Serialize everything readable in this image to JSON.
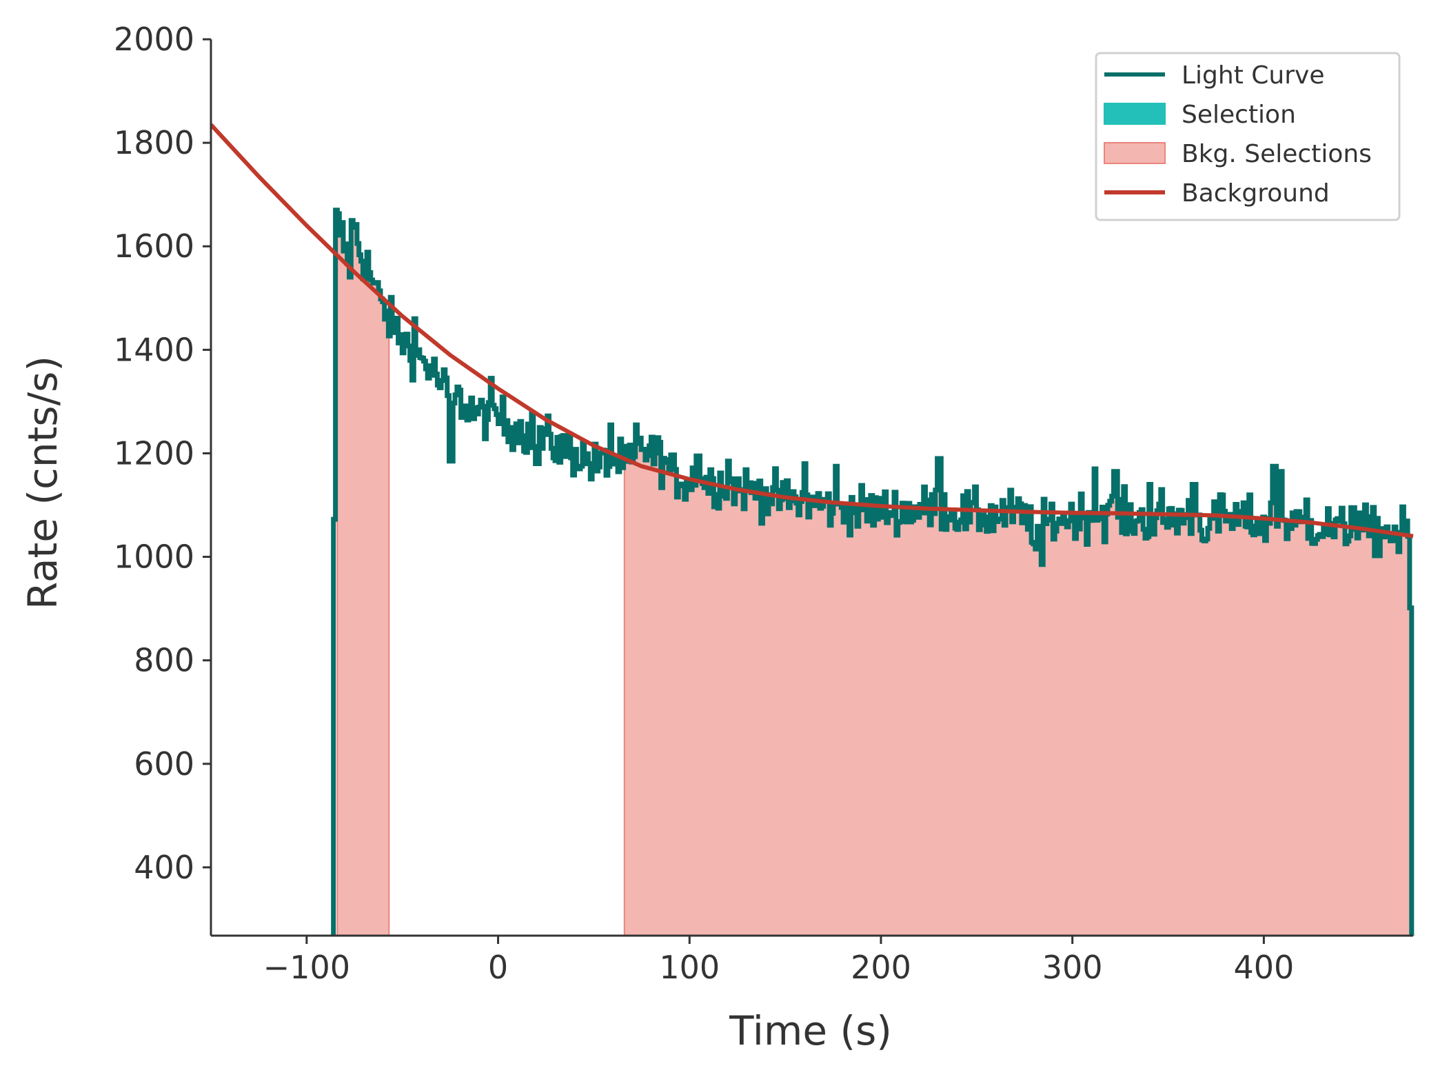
{
  "chart_data": {
    "type": "line",
    "xlabel": "Time (s)",
    "ylabel": "Rate (cnts/s)",
    "xlim": [
      -150,
      478
    ],
    "ylim": [
      268,
      2000
    ],
    "x_ticks": [
      -100,
      0,
      100,
      200,
      300,
      400
    ],
    "x_tick_labels": [
      "−100",
      "0",
      "100",
      "200",
      "300",
      "400"
    ],
    "y_ticks": [
      400,
      600,
      800,
      1000,
      1200,
      1400,
      1600,
      1800,
      2000
    ],
    "y_tick_labels": [
      "400",
      "600",
      "800",
      "1000",
      "1200",
      "1400",
      "1600",
      "1800",
      "2000"
    ],
    "grid": false,
    "legend_position": "top-right",
    "legend": [
      {
        "label": "Light Curve",
        "kind": "line",
        "color": "#076F69"
      },
      {
        "label": "Selection",
        "kind": "patch",
        "color": "#22C0B8"
      },
      {
        "label": "Bkg. Selections",
        "kind": "patch",
        "color": "#F4B6B1"
      },
      {
        "label": "Background",
        "kind": "line",
        "color": "#C0392B"
      }
    ],
    "light_curve": {
      "name": "Light Curve",
      "color": "#076F69",
      "start": -86,
      "end": 478,
      "anchors": [
        [
          -87,
          268
        ],
        [
          -86,
          1050
        ],
        [
          -85,
          1650
        ],
        [
          -82,
          1620
        ],
        [
          -78,
          1560
        ],
        [
          -75,
          1640
        ],
        [
          -72,
          1580
        ],
        [
          -68,
          1560
        ],
        [
          -64,
          1500
        ],
        [
          -60,
          1480
        ],
        [
          -55,
          1440
        ],
        [
          -50,
          1420
        ],
        [
          -45,
          1400
        ],
        [
          -40,
          1380
        ],
        [
          -35,
          1360
        ],
        [
          -30,
          1330
        ],
        [
          -25,
          1310
        ],
        [
          -20,
          1300
        ],
        [
          -15,
          1290
        ],
        [
          -10,
          1270
        ],
        [
          -5,
          1280
        ],
        [
          0,
          1270
        ],
        [
          5,
          1255
        ],
        [
          10,
          1250
        ],
        [
          15,
          1240
        ],
        [
          20,
          1235
        ],
        [
          25,
          1225
        ],
        [
          30,
          1215
        ],
        [
          35,
          1205
        ],
        [
          40,
          1200
        ],
        [
          45,
          1190
        ],
        [
          50,
          1175
        ],
        [
          55,
          1180
        ],
        [
          60,
          1185
        ],
        [
          65,
          1180
        ],
        [
          70,
          1175
        ],
        [
          75,
          1215
        ],
        [
          80,
          1200
        ],
        [
          85,
          1190
        ],
        [
          90,
          1160
        ],
        [
          95,
          1150
        ],
        [
          100,
          1150
        ],
        [
          110,
          1145
        ],
        [
          120,
          1140
        ],
        [
          130,
          1130
        ],
        [
          140,
          1120
        ],
        [
          150,
          1110
        ],
        [
          160,
          1105
        ],
        [
          170,
          1100
        ],
        [
          180,
          1095
        ],
        [
          190,
          1090
        ],
        [
          200,
          1090
        ],
        [
          210,
          1090
        ],
        [
          220,
          1090
        ],
        [
          230,
          1095
        ],
        [
          240,
          1085
        ],
        [
          250,
          1080
        ],
        [
          260,
          1080
        ],
        [
          270,
          1085
        ],
        [
          280,
          1060
        ],
        [
          290,
          1070
        ],
        [
          300,
          1080
        ],
        [
          310,
          1080
        ],
        [
          320,
          1085
        ],
        [
          330,
          1075
        ],
        [
          340,
          1070
        ],
        [
          350,
          1075
        ],
        [
          360,
          1080
        ],
        [
          370,
          1060
        ],
        [
          380,
          1075
        ],
        [
          390,
          1070
        ],
        [
          400,
          1065
        ],
        [
          410,
          1070
        ],
        [
          420,
          1060
        ],
        [
          430,
          1060
        ],
        [
          440,
          1050
        ],
        [
          450,
          1055
        ],
        [
          460,
          1045
        ],
        [
          470,
          1050
        ],
        [
          476,
          1045
        ],
        [
          477,
          268
        ]
      ],
      "spikes": [
        [
          -85,
          1670
        ],
        [
          -77,
          1650
        ],
        [
          -64,
          1530
        ],
        [
          -44,
          1460
        ],
        [
          -25,
          1185
        ],
        [
          -4,
          1345
        ],
        [
          20,
          1180
        ],
        [
          58,
          1255
        ],
        [
          72,
          1255
        ],
        [
          104,
          1195
        ],
        [
          120,
          1185
        ],
        [
          160,
          1180
        ],
        [
          176,
          1175
        ],
        [
          230,
          1190
        ],
        [
          281,
          1015
        ],
        [
          284,
          985
        ],
        [
          311,
          1170
        ],
        [
          322,
          1165
        ],
        [
          340,
          1140
        ],
        [
          346,
          1130
        ],
        [
          363,
          1140
        ],
        [
          377,
          1120
        ],
        [
          405,
          1175
        ],
        [
          408,
          1165
        ],
        [
          422,
          1110
        ],
        [
          446,
          1095
        ],
        [
          470,
          1010
        ]
      ]
    },
    "background_fit": {
      "name": "Background",
      "color": "#C0392B",
      "x": [
        -150,
        -125,
        -100,
        -75,
        -50,
        -25,
        0,
        25,
        50,
        75,
        100,
        125,
        150,
        175,
        200,
        225,
        250,
        275,
        300,
        325,
        350,
        375,
        400,
        425,
        450,
        478
      ],
      "y": [
        1835,
        1735,
        1640,
        1550,
        1465,
        1390,
        1325,
        1265,
        1215,
        1175,
        1150,
        1130,
        1115,
        1105,
        1098,
        1093,
        1090,
        1087,
        1085,
        1084,
        1082,
        1080,
        1074,
        1066,
        1055,
        1040
      ]
    },
    "bkg_selections": {
      "name": "Bkg. Selections",
      "color": "#F4B6B1",
      "ranges": [
        [
          -84,
          -57
        ],
        [
          66,
          478
        ]
      ]
    }
  }
}
